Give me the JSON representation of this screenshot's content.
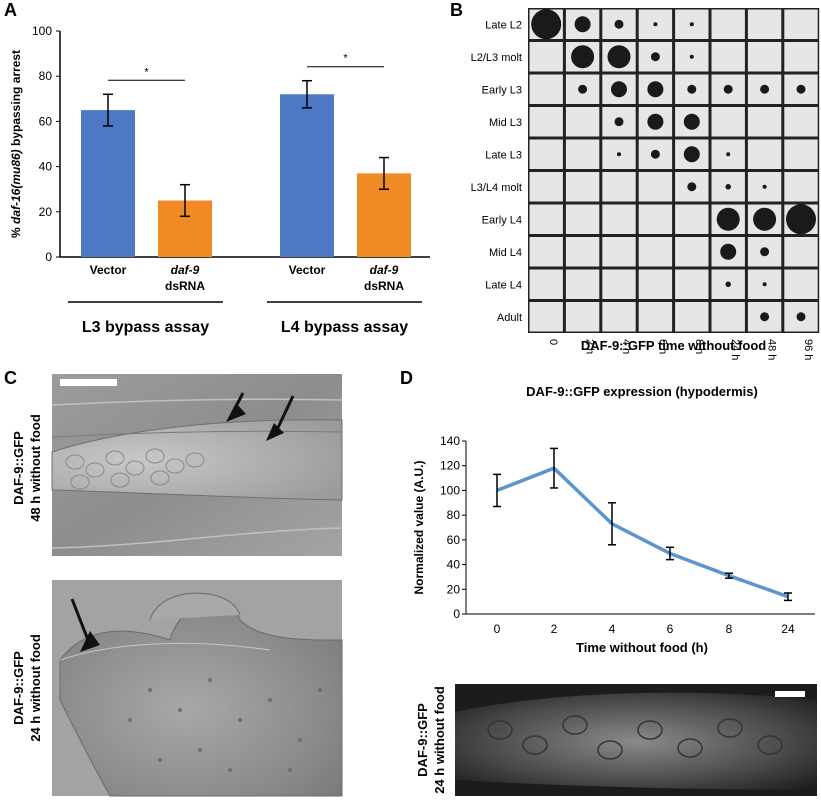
{
  "panels": {
    "A": "A",
    "B": "B",
    "C": "C",
    "D": "D"
  },
  "chart_data": [
    {
      "panel": "A",
      "type": "bar",
      "ylabel_parts": [
        "% ",
        "daf-16(mu86)",
        " bypassing arrest"
      ],
      "ylim": [
        0,
        100
      ],
      "yticks": [
        0,
        20,
        40,
        60,
        80,
        100
      ],
      "groups": [
        {
          "assay": "L3 bypass assay",
          "bars": [
            {
              "label": [
                "Vector"
              ],
              "value": 65,
              "err": 7,
              "color": "#4d78c4"
            },
            {
              "label": [
                "daf-9",
                "dsRNA"
              ],
              "value": 25,
              "err": 7,
              "color": "#f08a24"
            }
          ],
          "significance": "*"
        },
        {
          "assay": "L4 bypass assay",
          "bars": [
            {
              "label": [
                "Vector"
              ],
              "value": 72,
              "err": 6,
              "color": "#4d78c4"
            },
            {
              "label": [
                "daf-9",
                "dsRNA"
              ],
              "value": 37,
              "err": 7,
              "color": "#f08a24"
            }
          ],
          "significance": "*"
        }
      ]
    },
    {
      "panel": "B",
      "type": "bubble",
      "xlabel": "DAF-9::GFP time without food",
      "columns": [
        "0",
        "2 h",
        "4 h",
        "6 h",
        "8 h",
        "24 h",
        "48 h",
        "96 h"
      ],
      "rows": [
        "Late L2",
        "L2/L3 molt",
        "Early L3",
        "Mid L3",
        "Late L3",
        "L3/L4 molt",
        "Early L4",
        "Mid L4",
        "Late L4",
        "Adult"
      ],
      "sizes": [
        [
          4,
          2,
          1,
          0.3,
          0.3,
          0,
          0,
          0
        ],
        [
          0,
          3,
          3,
          1,
          0.3,
          0,
          0,
          0
        ],
        [
          0,
          1,
          2,
          2,
          1,
          1,
          1,
          1
        ],
        [
          0,
          0,
          1,
          2,
          2,
          0,
          0,
          0
        ],
        [
          0,
          0,
          0.3,
          1,
          2,
          0.3,
          0,
          0
        ],
        [
          0,
          0,
          0,
          0,
          1,
          0.5,
          0.3,
          0
        ],
        [
          0,
          0,
          0,
          0,
          0,
          3,
          3,
          4
        ],
        [
          0,
          0,
          0,
          0,
          0,
          2,
          1,
          0
        ],
        [
          0,
          0,
          0,
          0,
          0,
          0.5,
          0.3,
          0
        ],
        [
          0,
          0,
          0,
          0,
          0,
          0,
          1,
          1
        ]
      ]
    },
    {
      "panel": "D",
      "type": "line",
      "title": "DAF-9::GFP expression (hypodermis)",
      "xlabel": "Time without food (h)",
      "ylabel": "Normalized value (A.U.)",
      "categories": [
        "0",
        "2",
        "4",
        "6",
        "8",
        "24"
      ],
      "values": [
        100,
        118,
        73,
        49,
        31,
        14
      ],
      "errors": [
        13,
        16,
        17,
        5,
        2,
        3
      ],
      "ylim": [
        0,
        140
      ],
      "yticks": [
        0,
        20,
        40,
        60,
        80,
        100,
        120,
        140
      ],
      "color": "#5b95cf"
    }
  ],
  "micrographs": {
    "c_top_label": [
      "DAF-9::GFP",
      "48 h without food"
    ],
    "c_bottom_label": [
      "DAF-9::GFP",
      "24 h without food"
    ],
    "d_bottom_label": [
      "DAF-9::GFP",
      "24 h without food"
    ]
  }
}
